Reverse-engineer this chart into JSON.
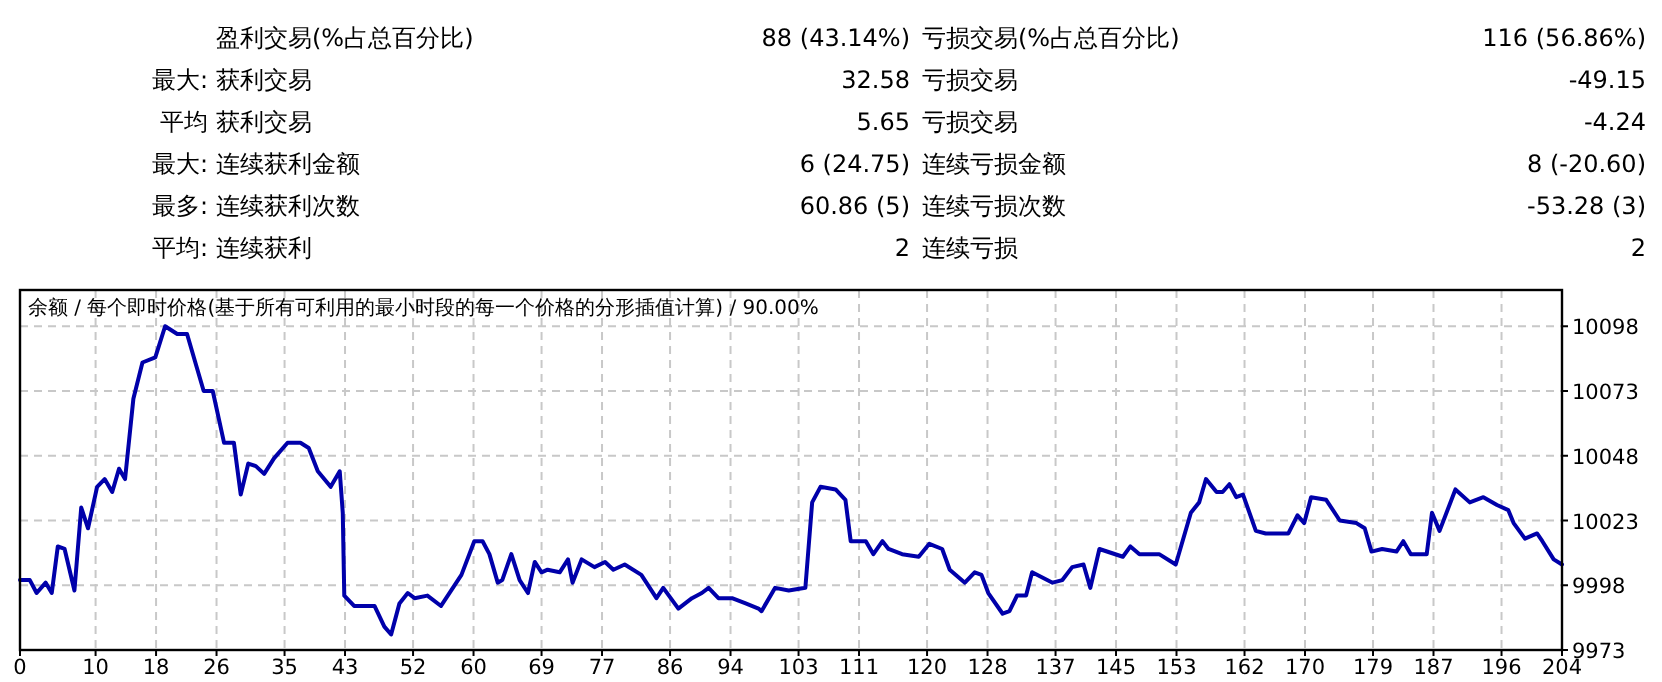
{
  "chart_data": [
    {
      "type": "other",
      "annotations": [
        "盈利交易(%占总百分比)",
        "88 (43.14%)",
        "亏损交易(%占总百分比)",
        "116 (56.86%)",
        "最大:",
        "获利交易",
        "32.58",
        "亏损交易",
        "-49.15",
        "平均",
        "获利交易",
        "5.65",
        "亏损交易",
        "-4.24",
        "最大:",
        "连续获利金额",
        "6 (24.75)",
        "连续亏损金额",
        "8 (-20.60)",
        "最多:",
        "连续获利次数",
        "60.86 (5)",
        "连续亏损次数",
        "-53.28 (3)",
        "平均:",
        "连续获利",
        "2",
        "连续亏损",
        "2"
      ]
    },
    {
      "type": "line",
      "title": "余额 / 每个即时价格(基于所有可利用的最小时段的每一个价格的分形插值计算) / 90.00%",
      "series": [
        {
          "color": "#0000aa",
          "x": [
            0,
            1.3,
            2.2,
            3.4,
            4.2,
            5,
            5.9,
            7.2,
            8.1,
            9,
            10.2,
            11.2,
            12.2,
            13.1,
            13.9,
            15,
            16.2,
            17.9,
            19.2,
            20.8,
            22.1,
            23.4,
            24.3,
            25.5,
            27,
            28.3,
            29.2,
            30.2,
            31.2,
            32.3,
            33.6,
            35.4,
            37.1,
            38.2,
            39.4,
            41.1,
            42.3,
            42.7,
            42.9,
            44.2,
            46.9,
            48.2,
            49.1,
            50.2,
            51.3,
            52.2,
            53.9,
            55.7,
            58.4,
            60.1,
            61.2,
            62.1,
            63.2,
            63.8,
            65,
            66.1,
            67.2,
            68.1,
            69,
            69.8,
            71.4,
            72.5,
            73.1,
            74.3,
            76,
            77.4,
            78.5,
            80,
            82.2,
            84.2,
            85.1,
            87.1,
            88.9,
            90.2,
            91.1,
            92.4,
            94.2,
            96,
            97.7,
            98.1,
            99.9,
            101.7,
            103.9,
            104.8,
            105.9,
            107.9,
            109.2,
            109.9,
            111.9,
            112.9,
            114.1,
            114.9,
            116.7,
            118.9,
            120.3,
            122,
            123,
            125,
            126.3,
            127.2,
            128.1,
            130,
            130.9,
            131.9,
            133.1,
            133.9,
            136.6,
            137.9,
            139.2,
            140.7,
            141.6,
            142.8,
            145.9,
            146.9,
            148.1,
            150.7,
            152.9,
            154.9,
            156,
            156.9,
            158.3,
            159.1,
            160,
            160.9,
            161.8,
            163.5,
            164.8,
            167.8,
            169,
            169.9,
            170.8,
            172.8,
            174.6,
            176.8,
            177.9,
            178.8,
            180.2,
            182.1,
            183,
            184,
            186.1,
            186.8,
            187.8,
            189.9,
            191.8,
            193.6,
            195.4,
            196.9,
            197.6,
            199.1,
            200.7,
            201.4,
            202.9,
            204
          ],
          "values": [
            10000,
            10000,
            9995,
            9999,
            9995,
            10013,
            10012,
            9996,
            10028,
            10020,
            10036,
            10039,
            10034,
            10043,
            10039,
            10070,
            10084,
            10086,
            10098,
            10095,
            10095,
            10082,
            10073,
            10073,
            10053,
            10053,
            10033,
            10045,
            10044,
            10041,
            10047,
            10053,
            10053,
            10051,
            10042,
            10036,
            10042,
            10026,
            9994,
            9990,
            9990,
            9982,
            9979,
            9991,
            9995,
            9993,
            9994,
            9990,
            10002,
            10015,
            10015,
            10010,
            9999,
            10000,
            10010,
            10000,
            9995,
            10007,
            10003,
            10004,
            10003,
            10008,
            9999,
            10008,
            10005,
            10007,
            10004,
            10006,
            10002,
            9993,
            9997,
            9989,
            9993,
            9995,
            9997,
            9993,
            9993,
            9991,
            9989,
            9988,
            9997,
            9996,
            9997,
            10030,
            10036,
            10035,
            10031,
            10015,
            10015,
            10010,
            10015,
            10012,
            10010,
            10009,
            10014,
            10012,
            10004,
            9999,
            10003,
            10002,
            9995,
            9987,
            9988,
            9994,
            9994,
            10003,
            9999,
            10000,
            10005,
            10006,
            9997,
            10012,
            10009,
            10013,
            10010,
            10010,
            10006,
            10026,
            10030,
            10039,
            10034,
            10034,
            10037,
            10032,
            10033,
            10019,
            10018,
            10018,
            10025,
            10022,
            10032,
            10031,
            10023,
            10022,
            10020,
            10011,
            10012,
            10011,
            10015,
            10010,
            10010,
            10026,
            10019,
            10035,
            10030,
            10032,
            10029,
            10027,
            10022,
            10016,
            10018,
            10015,
            10008,
            10006
          ]
        }
      ],
      "xlim": [
        0,
        204
      ],
      "xticks": [
        0,
        10,
        18,
        26,
        35,
        43,
        52,
        60,
        69,
        77,
        86,
        94,
        103,
        111,
        120,
        128,
        137,
        145,
        153,
        162,
        170,
        179,
        187,
        196,
        204
      ],
      "ylim": [
        9973,
        10112
      ],
      "yticks": [
        9973,
        9998,
        10023,
        10048,
        10073,
        10098
      ],
      "grid": true
    }
  ]
}
